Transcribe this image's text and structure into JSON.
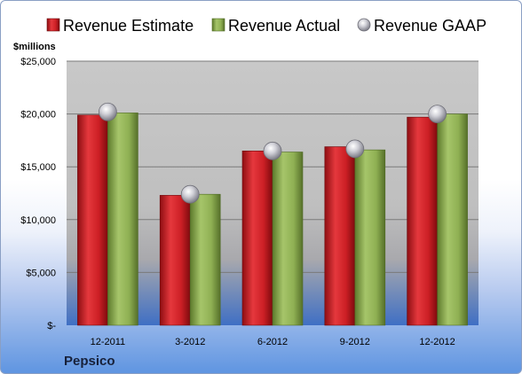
{
  "chart_data": {
    "type": "bar",
    "categories": [
      "12-2011",
      "3-2012",
      "6-2012",
      "9-2012",
      "12-2012"
    ],
    "series": [
      {
        "name": "Revenue Estimate",
        "kind": "bar",
        "color": "#cc1f25",
        "values": [
          19900,
          12300,
          16500,
          16900,
          19700
        ]
      },
      {
        "name": "Revenue Actual",
        "kind": "bar",
        "color": "#8fb053",
        "values": [
          20100,
          12400,
          16400,
          16600,
          20000
        ]
      },
      {
        "name": "Revenue GAAP",
        "kind": "marker",
        "color": "#b8b8c0",
        "values": [
          20200,
          12400,
          16500,
          16700,
          20000
        ]
      }
    ],
    "ylabel": "$millions",
    "ylim": [
      0,
      25000
    ],
    "yticks": [
      0,
      5000,
      10000,
      15000,
      20000,
      25000
    ],
    "ytick_labels": [
      "$-",
      "$5,000",
      "$10,000",
      "$15,000",
      "$20,000",
      "$25,000"
    ],
    "grid": true,
    "legend": "top"
  },
  "footer": {
    "company": "Pepsico"
  }
}
